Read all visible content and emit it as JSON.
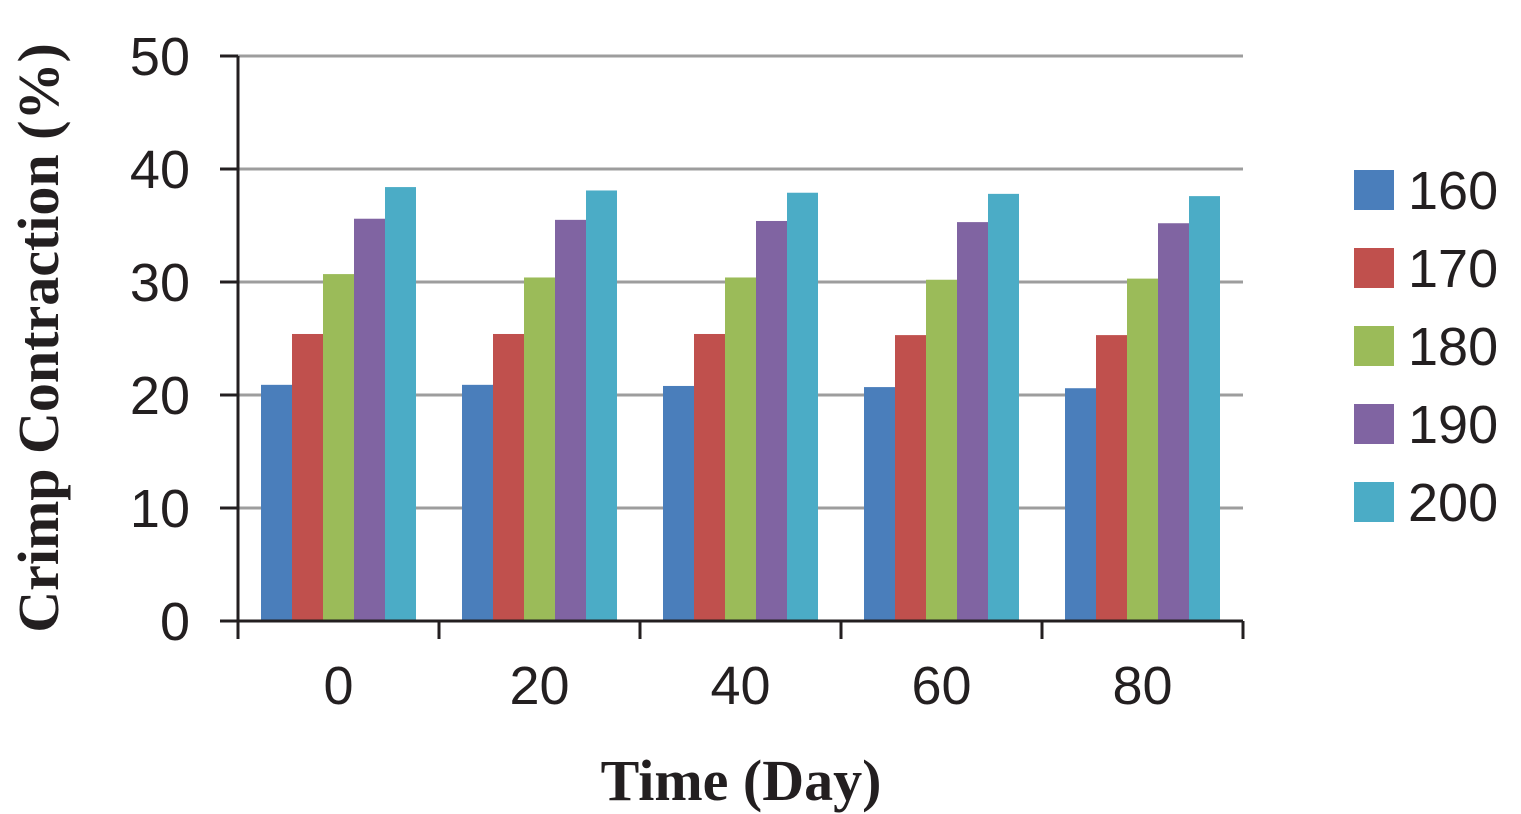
{
  "chart_data": {
    "type": "bar",
    "title": "",
    "xlabel": "Time (Day)",
    "ylabel": "Crimp Contraction (%)",
    "ylim": [
      0,
      50
    ],
    "yticks": [
      "0",
      "10",
      "20",
      "30",
      "40",
      "50"
    ],
    "categories": [
      "0",
      "20",
      "40",
      "60",
      "80"
    ],
    "grid": true,
    "legend_position": "right",
    "series": [
      {
        "name": "160",
        "color": "#4a7ebb",
        "values": [
          20.9,
          20.9,
          20.8,
          20.7,
          20.6
        ]
      },
      {
        "name": "170",
        "color": "#c0504d",
        "values": [
          25.4,
          25.4,
          25.4,
          25.3,
          25.3
        ]
      },
      {
        "name": "180",
        "color": "#9bbb59",
        "values": [
          30.7,
          30.4,
          30.4,
          30.2,
          30.3
        ]
      },
      {
        "name": "190",
        "color": "#8064a2",
        "values": [
          35.6,
          35.5,
          35.4,
          35.3,
          35.2
        ]
      },
      {
        "name": "200",
        "color": "#4bacc6",
        "values": [
          38.4,
          38.1,
          37.9,
          37.8,
          37.6
        ]
      }
    ]
  }
}
